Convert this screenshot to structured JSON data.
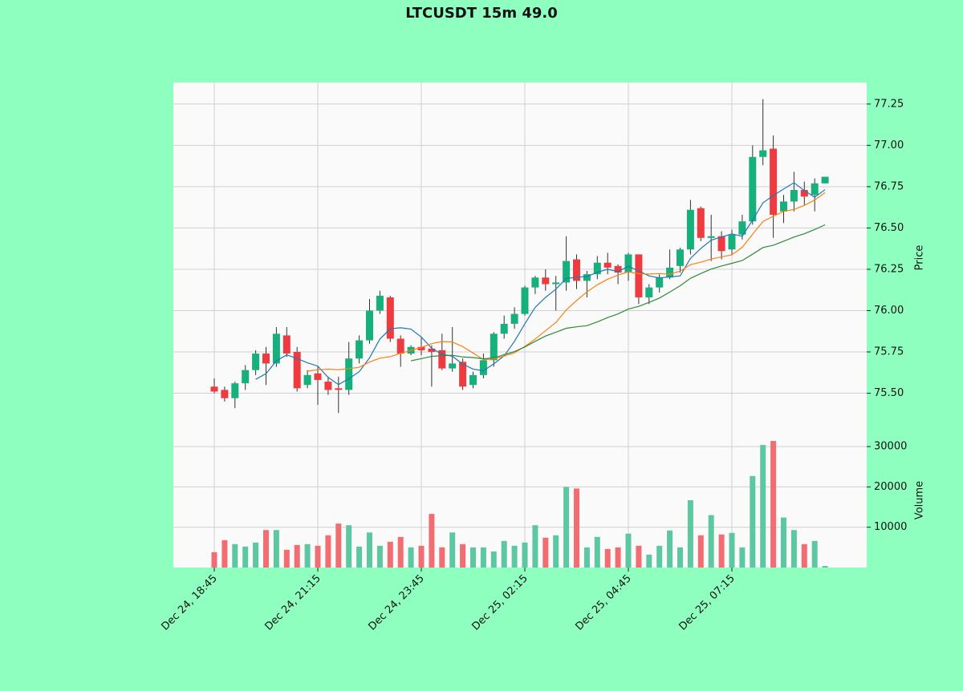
{
  "chart_data": {
    "type": "candlestick",
    "title": "LTCUSDT 15m 49.0",
    "categories": [
      "Dec 24, 18:45",
      null,
      null,
      null,
      null,
      null,
      null,
      null,
      null,
      null,
      "Dec 24, 21:15",
      null,
      null,
      null,
      null,
      null,
      null,
      null,
      null,
      null,
      "Dec 24, 23:45",
      null,
      null,
      null,
      null,
      null,
      null,
      null,
      null,
      null,
      "Dec 25, 02:15",
      null,
      null,
      null,
      null,
      null,
      null,
      null,
      null,
      null,
      "Dec 25, 04:45",
      null,
      null,
      null,
      null,
      null,
      null,
      null,
      null,
      null,
      "Dec 25, 07:15",
      null,
      null,
      null,
      null,
      null,
      null,
      null,
      null,
      null
    ],
    "open": [
      75.54,
      75.52,
      75.47,
      75.56,
      75.64,
      75.74,
      75.68,
      75.85,
      75.75,
      75.55,
      75.62,
      75.57,
      75.53,
      75.52,
      75.71,
      75.82,
      76.0,
      76.08,
      75.83,
      75.74,
      75.78,
      75.77,
      75.76,
      75.65,
      75.69,
      75.55,
      75.61,
      75.7,
      75.86,
      75.92,
      75.98,
      76.14,
      76.2,
      76.16,
      76.17,
      76.31,
      76.18,
      76.22,
      76.29,
      76.27,
      76.23,
      76.34,
      76.08,
      76.14,
      76.2,
      76.27,
      76.37,
      76.62,
      76.44,
      76.45,
      76.37,
      76.46,
      76.54,
      76.93,
      76.98,
      76.6,
      76.66,
      76.73,
      76.7,
      76.77
    ],
    "high": [
      75.59,
      75.54,
      75.57,
      75.67,
      75.76,
      75.78,
      75.9,
      75.9,
      75.78,
      75.64,
      75.66,
      75.6,
      75.6,
      75.81,
      75.85,
      76.07,
      76.12,
      76.09,
      75.85,
      75.79,
      75.84,
      75.79,
      75.86,
      75.9,
      75.71,
      75.63,
      75.74,
      75.87,
      75.97,
      76.02,
      76.15,
      76.21,
      76.25,
      76.21,
      76.45,
      76.34,
      76.24,
      76.33,
      76.35,
      76.28,
      76.35,
      76.34,
      76.16,
      76.22,
      76.37,
      76.38,
      76.67,
      76.63,
      76.58,
      76.48,
      76.49,
      76.58,
      77.0,
      77.28,
      77.06,
      76.7,
      76.84,
      76.78,
      76.8,
      76.81
    ],
    "low": [
      75.5,
      75.45,
      75.41,
      75.52,
      75.61,
      75.55,
      75.66,
      75.72,
      75.51,
      75.53,
      75.43,
      75.49,
      75.38,
      75.49,
      75.68,
      75.8,
      75.98,
      75.81,
      75.66,
      75.73,
      75.73,
      75.54,
      75.64,
      75.63,
      75.52,
      75.53,
      75.59,
      75.66,
      75.83,
      75.89,
      75.97,
      76.1,
      76.12,
      76.0,
      76.12,
      76.13,
      76.08,
      76.19,
      76.22,
      76.16,
      76.18,
      76.04,
      76.04,
      76.11,
      76.19,
      76.23,
      76.34,
      76.42,
      76.3,
      76.31,
      76.34,
      76.43,
      76.52,
      76.88,
      76.44,
      76.53,
      76.6,
      76.64,
      76.6,
      76.77
    ],
    "close": [
      75.51,
      75.47,
      75.56,
      75.64,
      75.74,
      75.68,
      75.86,
      75.74,
      75.53,
      75.61,
      75.58,
      75.52,
      75.52,
      75.71,
      75.82,
      76.0,
      76.09,
      75.83,
      75.74,
      75.78,
      75.76,
      75.75,
      75.65,
      75.68,
      75.54,
      75.61,
      75.7,
      75.86,
      75.92,
      75.98,
      76.14,
      76.2,
      76.16,
      76.17,
      76.3,
      76.18,
      76.22,
      76.29,
      76.26,
      76.23,
      76.34,
      76.08,
      76.14,
      76.2,
      76.26,
      76.37,
      76.61,
      76.44,
      76.45,
      76.36,
      76.46,
      76.54,
      76.93,
      76.97,
      76.58,
      76.66,
      76.73,
      76.69,
      76.77,
      76.81
    ],
    "ylim": [
      75.26,
      77.38
    ],
    "yticks": [
      {
        "value": 75.5,
        "label": "75.50"
      },
      75.75,
      {
        "value": 76,
        "label": "76.00"
      },
      76.25,
      {
        "value": 76.5,
        "label": "76.50"
      },
      76.75,
      {
        "value": 77,
        "label": "77.00"
      },
      77.25
    ],
    "ylabel": "Price",
    "up_color": "#16b07c",
    "down_color": "#ef3b3f",
    "volume": {
      "label": "Volume",
      "values": [
        3800,
        6800,
        5800,
        5200,
        6200,
        9300,
        9300,
        4400,
        5600,
        5800,
        5400,
        8000,
        10900,
        10500,
        5200,
        8700,
        5400,
        6400,
        7600,
        5000,
        5400,
        13300,
        5000,
        8700,
        5800,
        5000,
        5000,
        4000,
        6600,
        5400,
        6200,
        10500,
        7400,
        8000,
        20000,
        19600,
        5000,
        7600,
        4600,
        5000,
        8400,
        5400,
        3200,
        5400,
        9200,
        5000,
        16700,
        8000,
        13000,
        8200,
        8600,
        5000,
        22700,
        30400,
        31400,
        12400,
        9300,
        5800,
        6600,
        400
      ],
      "ylim": [
        0,
        33400
      ],
      "yticks": [
        10000,
        20000,
        30000
      ],
      "up_color": "#5cc8a2",
      "down_color": "#f26d72"
    },
    "moving_averages": [
      {
        "period": 5,
        "color": "#1f77b4"
      },
      {
        "period": 10,
        "color": "#ff7f0e"
      },
      {
        "period": 20,
        "color": "#2e8b3a"
      }
    ],
    "grid": true
  }
}
